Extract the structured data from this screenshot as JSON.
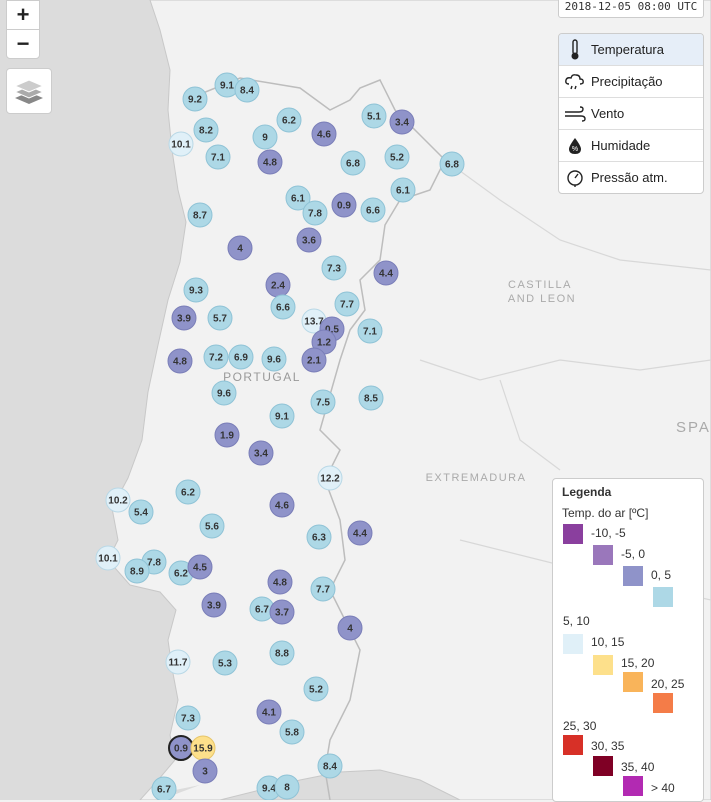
{
  "map": {
    "country_label": "PORTUGAL",
    "region_labels": [
      {
        "name": "castilla",
        "text": "CASTILLA"
      },
      {
        "name": "and-leon",
        "text": "AND LEON"
      },
      {
        "name": "extremadura",
        "text": "EXTREMADURA"
      },
      {
        "name": "spain-partial",
        "text": "SPA"
      }
    ]
  },
  "controls": {
    "zoom_in": "+",
    "zoom_out": "−"
  },
  "timestamp": "2018-12-05 08:00 UTC",
  "variables": [
    {
      "label": "Temperatura",
      "icon": "thermometer-icon",
      "active": true
    },
    {
      "label": "Precipitação",
      "icon": "rain-cloud-icon",
      "active": false
    },
    {
      "label": "Vento",
      "icon": "wind-icon",
      "active": false
    },
    {
      "label": "Humidade",
      "icon": "humidity-drop-icon",
      "active": false
    },
    {
      "label": "Pressão atm.",
      "icon": "pressure-gauge-icon",
      "active": false
    }
  ],
  "legend": {
    "title": "Legenda",
    "subtitle": "Temp. do ar [ºC]",
    "items": [
      {
        "label": "-10, -5",
        "color": "#8a3f9e"
      },
      {
        "label": "-5, 0",
        "color": "#9a77bb"
      },
      {
        "label": "0, 5",
        "color": "#8f93c9"
      },
      {
        "label": "",
        "color": "#add8e6"
      },
      {
        "label": "5, 10",
        "color": "#e0f0f8"
      },
      {
        "label": "10, 15",
        "color": "#fde08b"
      },
      {
        "label": "15, 20",
        "color": "#f9b45a"
      },
      {
        "label": "20, 25",
        "color": "#f47c48"
      },
      {
        "label": "25, 30",
        "color": "#d73027"
      },
      {
        "label": "30, 35",
        "color": "#7f0025"
      },
      {
        "label": "35, 40",
        "color": "#b22ab2"
      },
      {
        "label": "> 40",
        "color": ""
      }
    ]
  },
  "stations": [
    {
      "t": "9.1",
      "c": "lb"
    },
    {
      "t": "8.4",
      "c": "lb"
    },
    {
      "t": "9.2",
      "c": "lb"
    },
    {
      "t": "6.2",
      "c": "lb"
    },
    {
      "t": "5.1",
      "c": "lb"
    },
    {
      "t": "3.4",
      "c": "pu"
    },
    {
      "t": "8.2",
      "c": "lb"
    },
    {
      "t": "9",
      "c": "lb"
    },
    {
      "t": "4.6",
      "c": "pu"
    },
    {
      "t": "10.1",
      "c": "vl"
    },
    {
      "t": "7.1",
      "c": "lb"
    },
    {
      "t": "4.8",
      "c": "pu"
    },
    {
      "t": "6.8",
      "c": "lb"
    },
    {
      "t": "5.2",
      "c": "lb"
    },
    {
      "t": "6.8",
      "c": "lb"
    },
    {
      "t": "6.1",
      "c": "lb"
    },
    {
      "t": "6.1",
      "c": "lb"
    },
    {
      "t": "8.7",
      "c": "lb"
    },
    {
      "t": "7.8",
      "c": "lb"
    },
    {
      "t": "0.9",
      "c": "pu"
    },
    {
      "t": "6.6",
      "c": "lb"
    },
    {
      "t": "4",
      "c": "pu"
    },
    {
      "t": "3.6",
      "c": "pu"
    },
    {
      "t": "7.3",
      "c": "lb"
    },
    {
      "t": "4.4",
      "c": "pu"
    },
    {
      "t": "2.4",
      "c": "pu"
    },
    {
      "t": "9.3",
      "c": "lb"
    },
    {
      "t": "6.6",
      "c": "lb"
    },
    {
      "t": "7.7",
      "c": "lb"
    },
    {
      "t": "3.9",
      "c": "pu"
    },
    {
      "t": "5.7",
      "c": "lb"
    },
    {
      "t": "13.7",
      "c": "vl"
    },
    {
      "t": "0.5",
      "c": "pu"
    },
    {
      "t": "7.1",
      "c": "lb"
    },
    {
      "t": "1.2",
      "c": "pu"
    },
    {
      "t": "4.8",
      "c": "pu"
    },
    {
      "t": "7.2",
      "c": "lb"
    },
    {
      "t": "6.9",
      "c": "lb"
    },
    {
      "t": "9.6",
      "c": "lb"
    },
    {
      "t": "2.1",
      "c": "pu"
    },
    {
      "t": "9.6",
      "c": "lb"
    },
    {
      "t": "7.5",
      "c": "lb"
    },
    {
      "t": "8.5",
      "c": "lb"
    },
    {
      "t": "9.1",
      "c": "lb"
    },
    {
      "t": "1.9",
      "c": "pu"
    },
    {
      "t": "3.4",
      "c": "pu"
    },
    {
      "t": "12.2",
      "c": "vl"
    },
    {
      "t": "10.2",
      "c": "vl"
    },
    {
      "t": "5.4",
      "c": "lb"
    },
    {
      "t": "6.2",
      "c": "lb"
    },
    {
      "t": "4.6",
      "c": "pu"
    },
    {
      "t": "5.6",
      "c": "lb"
    },
    {
      "t": "6.3",
      "c": "lb"
    },
    {
      "t": "4.4",
      "c": "pu"
    },
    {
      "t": "10.1",
      "c": "vl"
    },
    {
      "t": "7.8",
      "c": "lb"
    },
    {
      "t": "8.9",
      "c": "lb"
    },
    {
      "t": "6.2",
      "c": "lb"
    },
    {
      "t": "4.5",
      "c": "pu"
    },
    {
      "t": "4.8",
      "c": "pu"
    },
    {
      "t": "7.7",
      "c": "lb"
    },
    {
      "t": "3.9",
      "c": "pu"
    },
    {
      "t": "6.7",
      "c": "lb"
    },
    {
      "t": "3.7",
      "c": "pu"
    },
    {
      "t": "4",
      "c": "pu"
    },
    {
      "t": "11.7",
      "c": "vl"
    },
    {
      "t": "5.3",
      "c": "lb"
    },
    {
      "t": "8.8",
      "c": "lb"
    },
    {
      "t": "5.2",
      "c": "lb"
    },
    {
      "t": "7.3",
      "c": "lb"
    },
    {
      "t": "4.1",
      "c": "pu"
    },
    {
      "t": "5.8",
      "c": "lb"
    },
    {
      "t": "0.9",
      "c": "pu"
    },
    {
      "t": "15.9",
      "c": "ye"
    },
    {
      "t": "3",
      "c": "pu"
    },
    {
      "t": "8.4",
      "c": "lb"
    },
    {
      "t": "6.7",
      "c": "lb"
    },
    {
      "t": "9.4",
      "c": "lb"
    },
    {
      "t": "8",
      "c": "lb"
    }
  ]
}
